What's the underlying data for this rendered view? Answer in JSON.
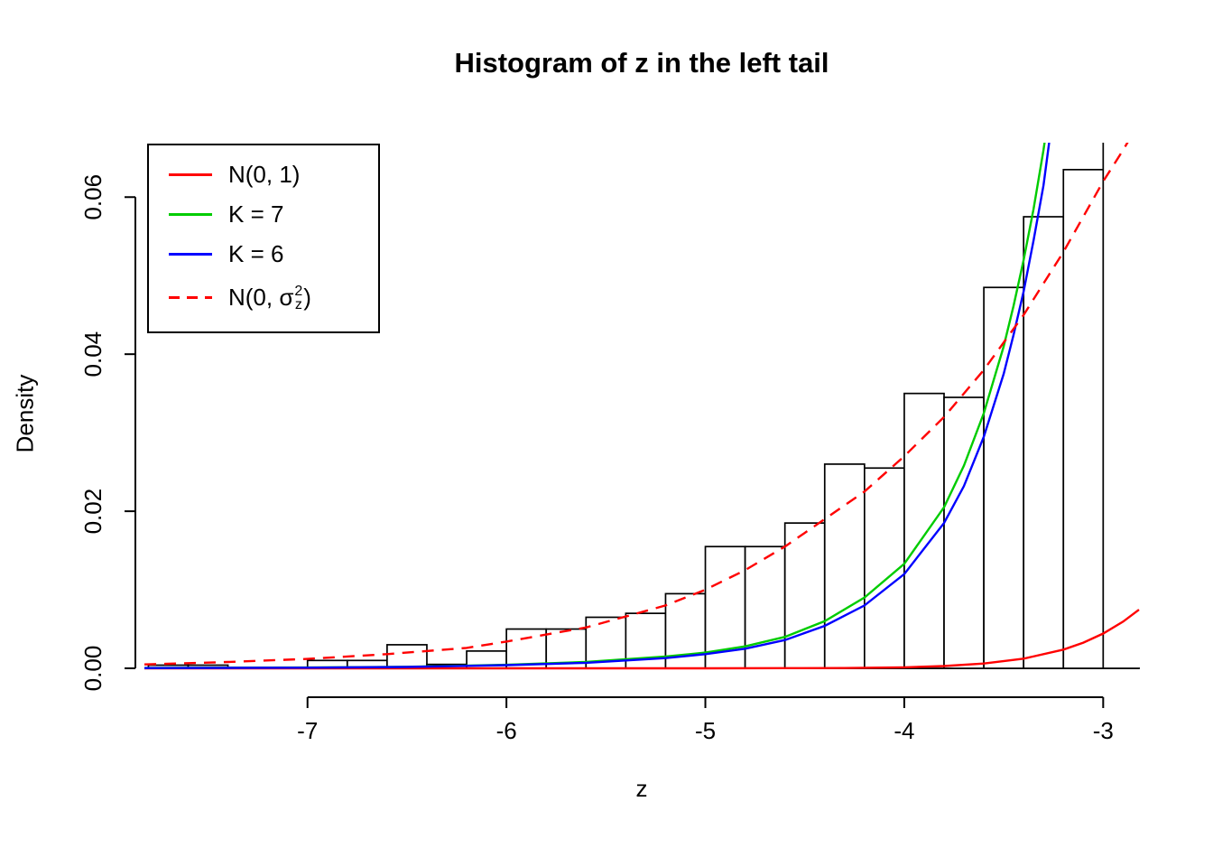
{
  "legend": {
    "items": [
      {
        "label": "N(0, 1)",
        "color": "#FF0000",
        "style": "solid"
      },
      {
        "label": "K = 7",
        "color": "#00CC00",
        "style": "solid"
      },
      {
        "label": "K = 6",
        "color": "#0000FF",
        "style": "solid"
      },
      {
        "label_prefix": "N(0, σ",
        "sup": "2",
        "sub": "z",
        "label_suffix": ")",
        "color": "#FF0000",
        "style": "dashed"
      }
    ]
  },
  "chart_data": {
    "type": "bar",
    "title": "Histogram of z in the left tail",
    "xlabel": "z",
    "ylabel": "Density",
    "xlim": [
      -7.82,
      -2.82
    ],
    "ylim": [
      0,
      0.0667
    ],
    "x_ticks": [
      -7,
      -6,
      -5,
      -4,
      -3
    ],
    "x_tick_labels": [
      "-7",
      "-6",
      "-5",
      "-4",
      "-3"
    ],
    "y_ticks": [
      0,
      0.02,
      0.04,
      0.06
    ],
    "y_tick_labels": [
      "0.00",
      "0.02",
      "0.04",
      "0.06"
    ],
    "grid": false,
    "legend_position": "top-left",
    "histogram": {
      "bin_width": 0.2,
      "bar_fill": "#FFFFFF",
      "bar_stroke": "#000000",
      "left_edges": [
        -7.8,
        -7.6,
        -7.4,
        -7.2,
        -7.0,
        -6.8,
        -6.6,
        -6.4,
        -6.2,
        -6.0,
        -5.8,
        -5.6,
        -5.4,
        -5.2,
        -5.0,
        -4.8,
        -4.6,
        -4.4,
        -4.2,
        -4.0,
        -3.8,
        -3.6,
        -3.4,
        -3.2,
        -3.0
      ],
      "densities": [
        0.0004,
        0.0004,
        0,
        0,
        0.001,
        0.001,
        0.003,
        0.0005,
        0.0022,
        0.005,
        0.005,
        0.0065,
        0.007,
        0.0095,
        0.0155,
        0.0155,
        0.0185,
        0.026,
        0.0255,
        0.035,
        0.0345,
        0.0485,
        0.0575,
        0.0635,
        0.075
      ]
    },
    "series": [
      {
        "name": "N(0, 1)",
        "color": "#FF0000",
        "style": "solid",
        "points": [
          [
            -7.82,
            0.0
          ],
          [
            -5.0,
            0.0
          ],
          [
            -4.6,
            2e-05
          ],
          [
            -4.3,
            4e-05
          ],
          [
            -4.0,
            0.00013
          ],
          [
            -3.8,
            0.00029
          ],
          [
            -3.6,
            0.00061
          ],
          [
            -3.4,
            0.00123
          ],
          [
            -3.2,
            0.00238
          ],
          [
            -3.1,
            0.00327
          ],
          [
            -3.0,
            0.00443
          ],
          [
            -2.9,
            0.00595
          ],
          [
            -2.82,
            0.00746
          ]
        ]
      },
      {
        "name": "K = 7",
        "color": "#00CC00",
        "style": "solid",
        "points": [
          [
            -7.82,
            5e-05
          ],
          [
            -7.0,
            0.0001
          ],
          [
            -6.5,
            0.0002
          ],
          [
            -6.0,
            0.00045
          ],
          [
            -5.6,
            0.0008
          ],
          [
            -5.2,
            0.0015
          ],
          [
            -5.0,
            0.002
          ],
          [
            -4.8,
            0.0028
          ],
          [
            -4.6,
            0.004
          ],
          [
            -4.4,
            0.006
          ],
          [
            -4.2,
            0.009
          ],
          [
            -4.0,
            0.0133
          ],
          [
            -3.8,
            0.0205
          ],
          [
            -3.7,
            0.0258
          ],
          [
            -3.6,
            0.0325
          ],
          [
            -3.5,
            0.041
          ],
          [
            -3.45,
            0.0462
          ],
          [
            -3.4,
            0.052
          ],
          [
            -3.35,
            0.0585
          ],
          [
            -3.3,
            0.066
          ],
          [
            -3.26,
            0.073
          ]
        ]
      },
      {
        "name": "K = 6",
        "color": "#0000FF",
        "style": "solid",
        "points": [
          [
            -7.82,
            4e-05
          ],
          [
            -7.0,
            8e-05
          ],
          [
            -6.5,
            0.00017
          ],
          [
            -6.0,
            0.0004
          ],
          [
            -5.6,
            0.0007
          ],
          [
            -5.2,
            0.0013
          ],
          [
            -5.0,
            0.0018
          ],
          [
            -4.8,
            0.0025
          ],
          [
            -4.6,
            0.0036
          ],
          [
            -4.4,
            0.0054
          ],
          [
            -4.2,
            0.008
          ],
          [
            -4.0,
            0.012
          ],
          [
            -3.8,
            0.0185
          ],
          [
            -3.7,
            0.0232
          ],
          [
            -3.6,
            0.0295
          ],
          [
            -3.5,
            0.0375
          ],
          [
            -3.45,
            0.0425
          ],
          [
            -3.4,
            0.048
          ],
          [
            -3.35,
            0.0545
          ],
          [
            -3.3,
            0.0615
          ],
          [
            -3.24,
            0.073
          ]
        ]
      },
      {
        "name": "N(0, σz²)",
        "color": "#FF0000",
        "style": "dashed",
        "points": [
          [
            -7.82,
            0.0005
          ],
          [
            -7.4,
            0.0008
          ],
          [
            -7.0,
            0.0012
          ],
          [
            -6.6,
            0.0018
          ],
          [
            -6.2,
            0.0026
          ],
          [
            -6.0,
            0.0034
          ],
          [
            -5.6,
            0.0052
          ],
          [
            -5.2,
            0.008
          ],
          [
            -5.0,
            0.01
          ],
          [
            -4.8,
            0.0125
          ],
          [
            -4.6,
            0.0155
          ],
          [
            -4.4,
            0.019
          ],
          [
            -4.2,
            0.0225
          ],
          [
            -4.0,
            0.027
          ],
          [
            -3.8,
            0.032
          ],
          [
            -3.6,
            0.038
          ],
          [
            -3.4,
            0.045
          ],
          [
            -3.2,
            0.053
          ],
          [
            -3.0,
            0.062
          ],
          [
            -2.9,
            0.066
          ],
          [
            -2.83,
            0.069
          ]
        ]
      }
    ]
  }
}
